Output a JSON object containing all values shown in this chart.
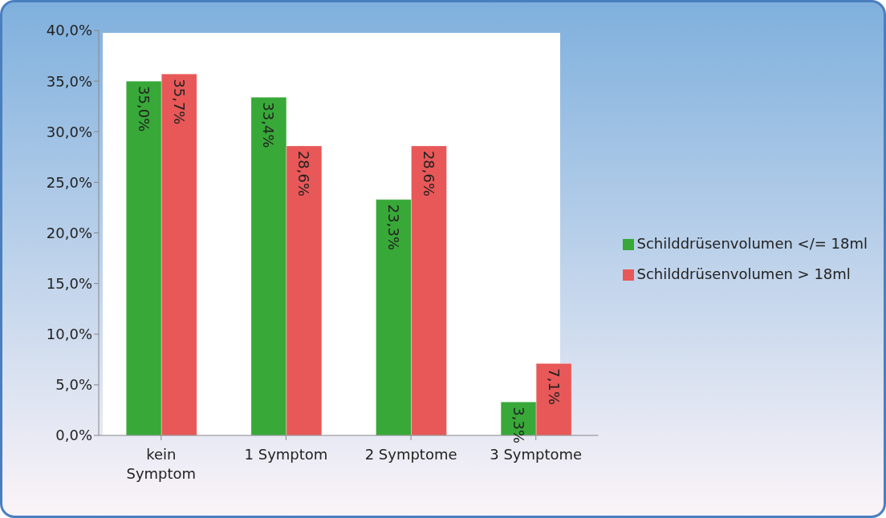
{
  "chart_data": {
    "type": "bar",
    "categories": [
      "kein Symptom",
      "1 Symptom",
      "2 Symptome",
      "3 Symptome"
    ],
    "series": [
      {
        "name": "Schilddrüsenvolumen </= 18ml",
        "color": "#38a838",
        "values": [
          35.0,
          33.4,
          23.3,
          3.3
        ],
        "value_labels": [
          "35,0%",
          "33,4%",
          "23,3%",
          "3,3%"
        ]
      },
      {
        "name": "Schilddrüsenvolumen > 18ml",
        "color": "#e85858",
        "values": [
          35.7,
          28.6,
          28.6,
          7.1
        ],
        "value_labels": [
          "35,7%",
          "28,6%",
          "28,6%",
          "7,1%"
        ]
      }
    ],
    "ylim": [
      0,
      40
    ],
    "yticks": [
      {
        "value": 0,
        "label": "0,0%"
      },
      {
        "value": 5,
        "label": "5,0%"
      },
      {
        "value": 10,
        "label": "10,0%"
      },
      {
        "value": 15,
        "label": "15,0%"
      },
      {
        "value": 20,
        "label": "20,0%"
      },
      {
        "value": 25,
        "label": "25,0%"
      },
      {
        "value": 30,
        "label": "30,0%"
      },
      {
        "value": 35,
        "label": "35,0%"
      },
      {
        "value": 40,
        "label": "40,0%"
      }
    ],
    "grid": false,
    "legend": "right"
  }
}
